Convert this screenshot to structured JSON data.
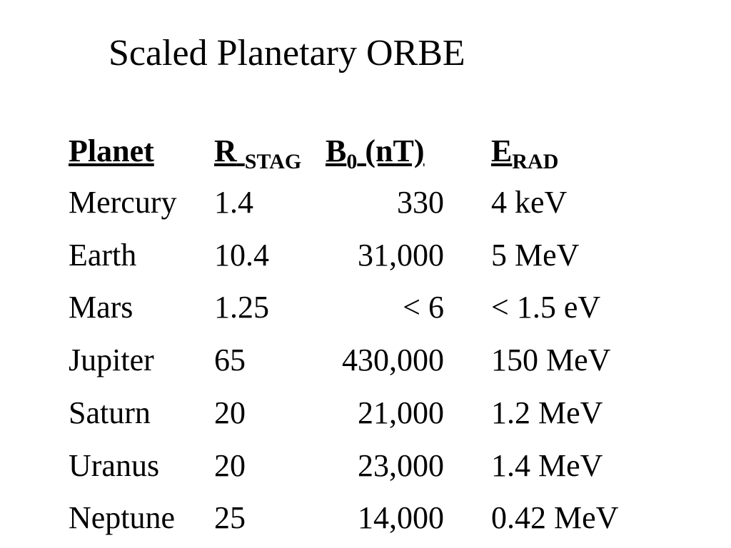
{
  "title": "Scaled Planetary ORBE",
  "table": {
    "header": [
      {
        "main": "Planet"
      },
      {
        "main": "R",
        "sub": "STAG"
      },
      {
        "main": "B",
        "sub": "0",
        "suffix": "(nT)"
      },
      {
        "main": "E",
        "sub": "RAD"
      }
    ],
    "rows": [
      [
        "Mercury",
        "1.4",
        "330",
        "4 keV"
      ],
      [
        "Earth",
        "10.4",
        "31,000",
        "5 MeV"
      ],
      [
        "Mars",
        "1.25",
        "< 6",
        "< 1.5 eV"
      ],
      [
        "Jupiter",
        "65",
        "430,000",
        "150 MeV"
      ],
      [
        "Saturn",
        "20",
        "21,000",
        "1.2 MeV"
      ],
      [
        "Uranus",
        "20",
        "23,000",
        "1.4 MeV"
      ],
      [
        "Neptune",
        "25",
        "14,000",
        "0.42 MeV"
      ]
    ]
  }
}
